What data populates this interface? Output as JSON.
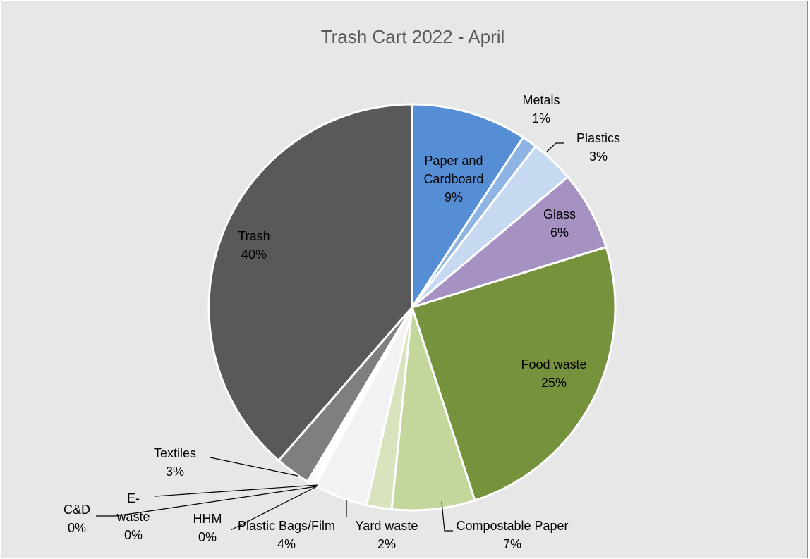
{
  "chart_data": {
    "type": "pie",
    "title": "Trash Cart 2022 - April",
    "slices": [
      {
        "label": "Paper and Cardboard",
        "lines": [
          "Paper and",
          "Cardboard",
          "9%"
        ],
        "value": 9,
        "color": "#558ed5"
      },
      {
        "label": "Metals",
        "lines": [
          "Metals",
          "1%"
        ],
        "value": 1,
        "color": "#8eb4e3"
      },
      {
        "label": "Plastics",
        "lines": [
          "Plastics",
          "3%"
        ],
        "value": 3,
        "color": "#c6d9f1"
      },
      {
        "label": "Glass",
        "lines": [
          "Glass",
          "6%"
        ],
        "value": 6,
        "color": "#a692c2"
      },
      {
        "label": "Food waste",
        "lines": [
          "Food waste",
          "25%"
        ],
        "value": 25,
        "color": "#76923c"
      },
      {
        "label": "Compostable Paper",
        "lines": [
          "Compostable Paper",
          "7%"
        ],
        "value": 7,
        "color": "#c3d69b"
      },
      {
        "label": "Yard waste",
        "lines": [
          "Yard waste",
          "2%"
        ],
        "value": 2,
        "color": "#d7e4bd"
      },
      {
        "label": "Plastic Bags/Film",
        "lines": [
          "Plastic Bags/Film",
          "4%"
        ],
        "value": 4,
        "color": "#f2f2f2"
      },
      {
        "label": "HHM",
        "lines": [
          "HHM",
          "0%"
        ],
        "value": 0,
        "color": "#ffffff"
      },
      {
        "label": "E-waste",
        "lines": [
          "E-",
          "waste",
          "0%"
        ],
        "value": 0,
        "color": "#d9d9d9"
      },
      {
        "label": "C&D",
        "lines": [
          "C&D",
          "0%"
        ],
        "value": 0,
        "color": "#bfbfbf"
      },
      {
        "label": "Textiles",
        "lines": [
          "Textiles",
          "3%"
        ],
        "value": 3,
        "color": "#7f7f7f"
      },
      {
        "label": "Trash",
        "lines": [
          "Trash",
          "40%"
        ],
        "value": 40,
        "color": "#595959"
      }
    ]
  }
}
